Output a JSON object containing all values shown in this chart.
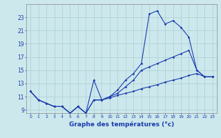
{
  "xlabel": "Graphe des températures (°c)",
  "background_color": "#cce8ec",
  "grid_color": "#aacdd4",
  "line_color": "#1a3aad",
  "top_x": [
    0,
    1,
    2,
    3,
    4,
    5,
    6,
    7,
    8,
    9,
    10,
    11,
    12,
    13,
    14,
    15,
    16,
    17,
    18,
    19,
    20,
    21,
    22,
    23
  ],
  "top_y": [
    11.8,
    10.5,
    10.0,
    9.5,
    9.5,
    8.5,
    9.5,
    8.5,
    13.5,
    10.5,
    11.0,
    12.0,
    13.5,
    14.5,
    16.0,
    23.5,
    24.0,
    22.0,
    22.5,
    21.5,
    20.0,
    15.0,
    14.0,
    14.0
  ],
  "mid_x": [
    0,
    1,
    2,
    3,
    4,
    5,
    6,
    7,
    8,
    9,
    10,
    11,
    12,
    13,
    14,
    15,
    16,
    17,
    18,
    19,
    20,
    21,
    22,
    23
  ],
  "mid_y": [
    11.8,
    10.5,
    10.0,
    9.5,
    9.5,
    8.5,
    9.5,
    8.5,
    10.5,
    10.5,
    11.0,
    11.5,
    12.5,
    13.5,
    15.0,
    15.5,
    16.0,
    16.5,
    17.0,
    17.5,
    18.0,
    15.0,
    14.0,
    14.0
  ],
  "bot_x": [
    0,
    1,
    2,
    3,
    4,
    5,
    6,
    7,
    8,
    9,
    10,
    11,
    12,
    13,
    14,
    15,
    16,
    17,
    18,
    19,
    20,
    21,
    22,
    23
  ],
  "bot_y": [
    11.8,
    10.5,
    10.0,
    9.5,
    9.5,
    8.5,
    9.5,
    8.5,
    10.5,
    10.5,
    10.8,
    11.2,
    11.5,
    11.8,
    12.2,
    12.5,
    12.8,
    13.2,
    13.5,
    13.8,
    14.2,
    14.5,
    14.0,
    14.0
  ],
  "ylim": [
    8.5,
    25.0
  ],
  "yticks": [
    9,
    11,
    13,
    15,
    17,
    19,
    21,
    23
  ],
  "xlim": [
    -0.5,
    23.5
  ],
  "xticks": [
    0,
    1,
    2,
    3,
    4,
    5,
    6,
    7,
    8,
    9,
    10,
    11,
    12,
    13,
    14,
    15,
    16,
    17,
    18,
    19,
    20,
    21,
    22,
    23
  ]
}
